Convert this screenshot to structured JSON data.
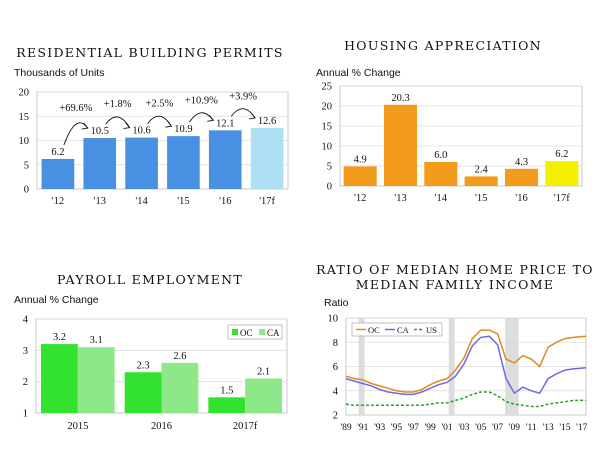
{
  "colors": {
    "permits_bar": "#4a90e2",
    "permits_forecast_bar": "#aee0f4",
    "housing_bar": "#f39c1c",
    "housing_forecast_bar": "#f4f000",
    "payroll_oc": "#33e22e",
    "payroll_ca": "#8ee88a",
    "ratio_oc": "#e08a1a",
    "ratio_ca": "#6a6ae8",
    "ratio_us": "#2ea02e",
    "recession_shade": "#d9d9d9"
  },
  "chart_data": [
    {
      "type": "bar",
      "title": "RESIDENTIAL BUILDING PERMITS",
      "ylabel": "Thousands of Units",
      "categories": [
        "'12",
        "'13",
        "'14",
        "'15",
        "'16",
        "'17f"
      ],
      "values": [
        6.2,
        10.5,
        10.6,
        10.9,
        12.1,
        12.6
      ],
      "value_labels": [
        "6.2",
        "10.5",
        "10.6",
        "10.9",
        "12.1",
        "12.6"
      ],
      "yticks": [
        "0",
        "5",
        "10",
        "15",
        "20"
      ],
      "ylim": [
        0,
        20
      ],
      "annotations": [
        "+69.6%",
        "+1.8%",
        "+2.5%",
        "+10.9%",
        "+3.9%"
      ],
      "grid": true
    },
    {
      "type": "bar",
      "title": "HOUSING APPRECIATION",
      "ylabel": "Annual % Change",
      "categories": [
        "'12",
        "'13",
        "'14",
        "'15",
        "'16",
        "'17f"
      ],
      "values": [
        4.9,
        20.3,
        6.0,
        2.4,
        4.3,
        6.2
      ],
      "value_labels": [
        "4.9",
        "20.3",
        "6.0",
        "2.4",
        "4.3",
        "6.2"
      ],
      "yticks": [
        "0",
        "5",
        "10",
        "15",
        "20",
        "25"
      ],
      "ylim": [
        0,
        25
      ],
      "grid": true
    },
    {
      "type": "bar",
      "title": "PAYROLL EMPLOYMENT",
      "ylabel": "Annual % Change",
      "categories": [
        "2015",
        "2016",
        "2017f"
      ],
      "series": [
        {
          "name": "OC",
          "values": [
            3.2,
            2.3,
            1.5
          ],
          "labels": [
            "3.2",
            "2.3",
            "1.5"
          ]
        },
        {
          "name": "CA",
          "values": [
            3.1,
            2.6,
            2.1
          ],
          "labels": [
            "3.1",
            "2.6",
            "2.1"
          ]
        }
      ],
      "yticks": [
        "1",
        "2",
        "3",
        "4"
      ],
      "ylim": [
        1,
        4
      ],
      "legend": "top-right",
      "grid": true
    },
    {
      "type": "line",
      "title_line1": "RATIO OF MEDIAN HOME PRICE TO",
      "title_line2": "MEDIAN FAMILY INCOME",
      "ylabel": "Ratio",
      "xticks": [
        "'89",
        "'91",
        "'93",
        "'95",
        "'97",
        "'99",
        "'01",
        "'03",
        "'05",
        "'07",
        "'09",
        "'11",
        "'13",
        "'15",
        "'17"
      ],
      "yticks": [
        "2",
        "4",
        "6",
        "8",
        "10"
      ],
      "ylim": [
        2,
        10
      ],
      "xlim": [
        1989,
        2017.5
      ],
      "recessions": [
        [
          1990.5,
          1991.2
        ],
        [
          2001.2,
          2001.9
        ],
        [
          2007.9,
          2009.5
        ]
      ],
      "legend": "top-left",
      "series": [
        {
          "name": "OC",
          "x": [
            1989,
            1990,
            1991,
            1992,
            1993,
            1994,
            1995,
            1996,
            1997,
            1998,
            1999,
            2000,
            2001,
            2002,
            2003,
            2004,
            2005,
            2006,
            2007,
            2008,
            2009,
            2010,
            2011,
            2012,
            2013,
            2014,
            2015,
            2016,
            2017.5
          ],
          "y": [
            5.2,
            5.0,
            4.9,
            4.6,
            4.4,
            4.2,
            4.0,
            3.9,
            3.9,
            4.1,
            4.5,
            4.8,
            5.0,
            5.7,
            6.7,
            8.3,
            9.0,
            9.0,
            8.7,
            6.6,
            6.3,
            6.9,
            6.6,
            6.0,
            7.6,
            8.0,
            8.3,
            8.4,
            8.5
          ]
        },
        {
          "name": "CA",
          "x": [
            1989,
            1990,
            1991,
            1992,
            1993,
            1994,
            1995,
            1996,
            1997,
            1998,
            1999,
            2000,
            2001,
            2002,
            2003,
            2004,
            2005,
            2006,
            2007,
            2008,
            2009,
            2010,
            2011,
            2012,
            2013,
            2014,
            2015,
            2016,
            2017.5
          ],
          "y": [
            5.0,
            4.8,
            4.6,
            4.4,
            4.1,
            3.9,
            3.8,
            3.7,
            3.7,
            3.9,
            4.2,
            4.5,
            4.7,
            5.2,
            6.2,
            7.7,
            8.4,
            8.5,
            7.8,
            5.0,
            3.8,
            4.3,
            4.0,
            3.8,
            5.0,
            5.4,
            5.7,
            5.8,
            5.9
          ]
        },
        {
          "name": "US",
          "x": [
            1989,
            1990,
            1991,
            1992,
            1993,
            1994,
            1995,
            1996,
            1997,
            1998,
            1999,
            2000,
            2001,
            2002,
            2003,
            2004,
            2005,
            2006,
            2007,
            2008,
            2009,
            2010,
            2011,
            2012,
            2013,
            2014,
            2015,
            2016,
            2017.5
          ],
          "y": [
            2.9,
            2.8,
            2.8,
            2.8,
            2.8,
            2.8,
            2.8,
            2.8,
            2.8,
            2.8,
            2.9,
            3.0,
            3.0,
            3.2,
            3.4,
            3.7,
            3.9,
            3.9,
            3.6,
            3.1,
            2.9,
            2.8,
            2.7,
            2.7,
            2.9,
            3.0,
            3.1,
            3.2,
            3.2
          ]
        }
      ]
    }
  ]
}
